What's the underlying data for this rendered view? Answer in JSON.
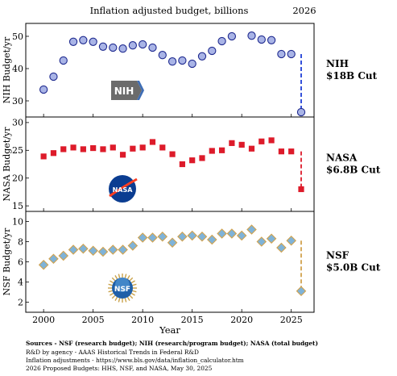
{
  "header": {
    "title": "Inflation adjusted budget, billions",
    "year_marker": "2026"
  },
  "x_axis": {
    "label": "Year",
    "ticks": [
      2000,
      2005,
      2010,
      2015,
      2020,
      2025
    ],
    "range": [
      1998.2,
      2027.3
    ]
  },
  "colors": {
    "nih_marker": "#a9b4e6",
    "nih_edge": "#1f2a8f",
    "nih_cut_line": "#1f3fd6",
    "nasa_marker": "#dd1b2a",
    "nasa_cut_line": "#dd1b2a",
    "nsf_marker": "#7fb3d8",
    "nsf_edge": "#d1a24e",
    "nsf_cut_line": "#d1a24e"
  },
  "chart_data": [
    {
      "type": "scatter",
      "ylabel": "NIH Budget/yr",
      "ylim": [
        25,
        54
      ],
      "yticks": [
        30,
        40,
        50
      ],
      "grid": false,
      "marker": "circle",
      "logo_text": "NIH",
      "cut_label_line1": "NIH",
      "cut_label_line2": "$18B Cut",
      "x": [
        2000,
        2001,
        2002,
        2003,
        2004,
        2005,
        2006,
        2007,
        2008,
        2009,
        2010,
        2011,
        2012,
        2013,
        2014,
        2015,
        2016,
        2017,
        2018,
        2019,
        2021,
        2022,
        2023,
        2024,
        2025
      ],
      "y": [
        33.5,
        37.5,
        42.5,
        48.3,
        48.8,
        48.3,
        46.8,
        46.5,
        46.2,
        47.2,
        47.5,
        46.5,
        44.2,
        42.2,
        42.5,
        41.5,
        43.8,
        45.5,
        48.5,
        50.0,
        50.2,
        49.0,
        48.8,
        44.5,
        44.5
      ],
      "cut": {
        "from_x": 2026,
        "from_y": 44.5,
        "to_x": 2026,
        "to_y": 26.5
      }
    },
    {
      "type": "scatter",
      "ylabel": "NASA Budget/yr",
      "ylim": [
        14,
        31
      ],
      "yticks": [
        15,
        20,
        25,
        30
      ],
      "grid": false,
      "marker": "square",
      "logo_text": "NASA",
      "cut_label_line1": "NASA",
      "cut_label_line2": "$6.8B Cut",
      "x": [
        2000,
        2001,
        2002,
        2003,
        2004,
        2005,
        2006,
        2007,
        2008,
        2009,
        2010,
        2011,
        2012,
        2013,
        2014,
        2015,
        2016,
        2017,
        2018,
        2019,
        2020,
        2021,
        2022,
        2023,
        2024,
        2025
      ],
      "y": [
        23.9,
        24.5,
        25.2,
        25.5,
        25.2,
        25.4,
        25.2,
        25.5,
        24.2,
        25.3,
        25.5,
        26.5,
        25.5,
        24.3,
        22.5,
        23.2,
        23.6,
        24.9,
        25.0,
        26.3,
        26.0,
        25.3,
        26.6,
        26.8,
        24.8,
        24.8
      ],
      "cut": {
        "from_x": 2026,
        "from_y": 24.8,
        "to_x": 2026,
        "to_y": 18.0
      }
    },
    {
      "type": "scatter",
      "ylabel": "NSF Budget/yr",
      "ylim": [
        1,
        11
      ],
      "yticks": [
        2,
        4,
        6,
        8,
        10
      ],
      "grid": false,
      "marker": "diamond",
      "logo_text": "NSF",
      "cut_label_line1": "NSF",
      "cut_label_line2": "$5.0B Cut",
      "x": [
        2000,
        2001,
        2002,
        2003,
        2004,
        2005,
        2006,
        2007,
        2008,
        2009,
        2010,
        2011,
        2012,
        2013,
        2014,
        2015,
        2016,
        2017,
        2018,
        2019,
        2020,
        2021,
        2022,
        2023,
        2024,
        2025
      ],
      "y": [
        5.7,
        6.3,
        6.6,
        7.2,
        7.3,
        7.1,
        7.0,
        7.2,
        7.2,
        7.6,
        8.4,
        8.4,
        8.5,
        7.9,
        8.5,
        8.6,
        8.5,
        8.2,
        8.8,
        8.8,
        8.6,
        9.2,
        8.0,
        8.3,
        7.4,
        8.1
      ],
      "cut": {
        "from_x": 2026,
        "from_y": 8.1,
        "to_x": 2026,
        "to_y": 3.1
      }
    }
  ],
  "sources": {
    "line1": "Sources - NSF (research budget); NIH (research/program budget); NASA (total budget)",
    "line2": "R&D by agency - AAAS Historical Trends in Federal R&D",
    "line3": "Inflation adjustments - https://www.bls.gov/data/inflation_calculator.htm",
    "line4": "2026 Proposed Budgets: HHS, NSF, and NASA, May 30, 2025"
  }
}
